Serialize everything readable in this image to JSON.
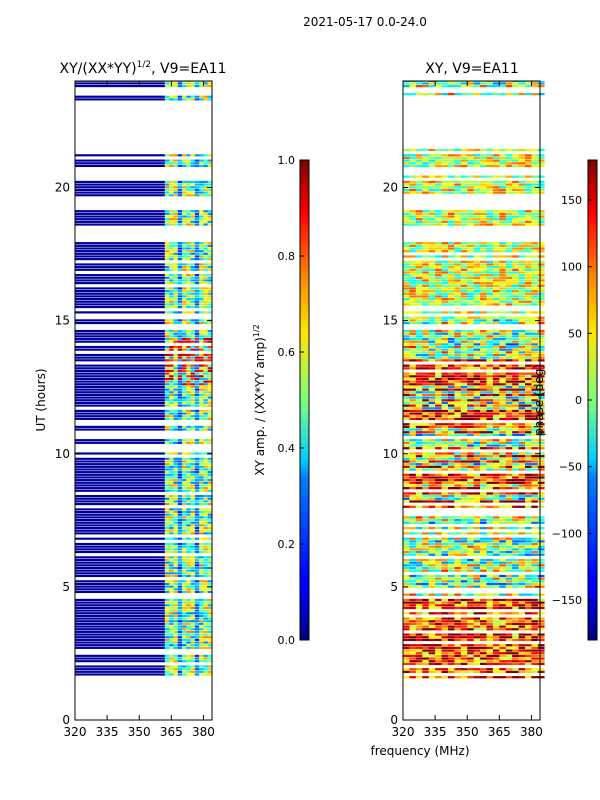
{
  "figure": {
    "suptitle": "2021-05-17 0.0-24.0",
    "xlabel_shared": "frequency (MHz)"
  },
  "chart_data": [
    {
      "type": "heatmap",
      "title": "XY/(XX*YY)^1/2, V9=EA11",
      "title_main": "XY/(XX*YY)",
      "title_exp": "1/2",
      "title_tail": ", V9=EA11",
      "xlabel": "",
      "ylabel": "UT (hours)",
      "xlim": [
        320,
        384
      ],
      "ylim": [
        0,
        24
      ],
      "xticks": [
        320,
        335,
        350,
        365,
        380
      ],
      "yticks": [
        0,
        5,
        10,
        15,
        20
      ],
      "colorbar": {
        "label": "XY amp. / (XX*YY amp)^1/2",
        "label_main": "XY amp. / (XX*YY amp)",
        "label_exp": "1/2",
        "range": [
          0.0,
          1.0
        ],
        "ticks": [
          "0.0",
          "0.2",
          "0.4",
          "0.6",
          "0.8",
          "1.0"
        ],
        "tick_values": [
          0.0,
          0.2,
          0.4,
          0.6,
          0.8,
          1.0
        ]
      }
    },
    {
      "type": "heatmap",
      "title": "XY, V9=EA11",
      "xlabel": "frequency (MHz)",
      "ylabel": "",
      "xlim": [
        320,
        384
      ],
      "ylim": [
        0,
        24
      ],
      "xticks": [
        320,
        335,
        350,
        365,
        380
      ],
      "yticks": [
        0,
        5,
        10,
        15,
        20
      ],
      "colorbar": {
        "label": "phase (deg)",
        "range": [
          -180,
          180
        ],
        "ticks": [
          "−150",
          "−100",
          "−50",
          "0",
          "50",
          "100",
          "150"
        ],
        "tick_values": [
          -150,
          -100,
          -50,
          0,
          50,
          100,
          150
        ]
      }
    }
  ]
}
